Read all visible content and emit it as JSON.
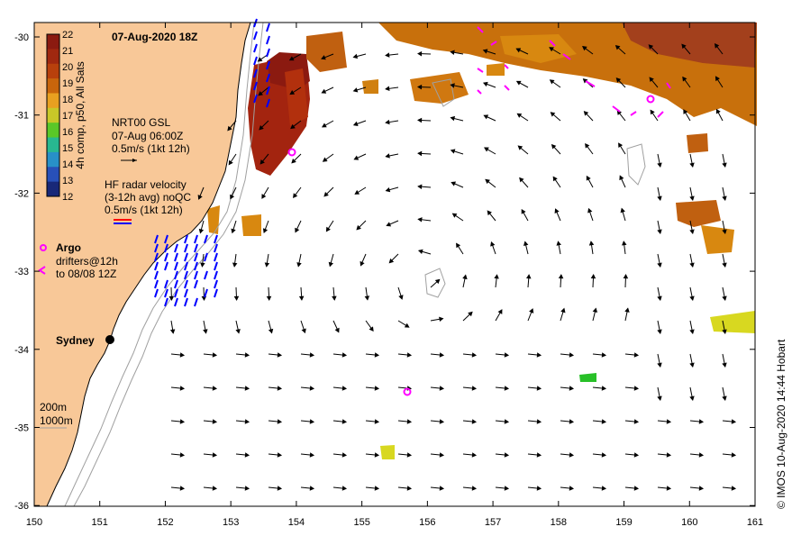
{
  "map": {
    "title": "07-Aug-2020 18Z",
    "credit": "© IMOS 10-Aug-2020 14:44 Hobart",
    "x_ticks": [
      "150",
      "151",
      "152",
      "153",
      "154",
      "155",
      "156",
      "157",
      "158",
      "159",
      "160",
      "161"
    ],
    "y_ticks": [
      "-30",
      "-31",
      "-32",
      "-33",
      "-34",
      "-35",
      "-36"
    ],
    "lon_range": [
      150,
      161
    ],
    "lat_range": [
      -36,
      -29.8
    ]
  },
  "colorbar": {
    "label": "4h comp, p50, All Sats",
    "ticks": [
      "22",
      "21",
      "20",
      "19",
      "18",
      "17",
      "16",
      "15",
      "14",
      "13",
      "12"
    ],
    "colors": [
      "#8b1a10",
      "#a0280f",
      "#b8400c",
      "#c8650c",
      "#e8a020",
      "#c8c828",
      "#5ac828",
      "#28b890",
      "#2890c8",
      "#2850b8",
      "#182878"
    ]
  },
  "legend": {
    "gsl_title": "NRT00 GSL",
    "gsl_time": "07-Aug 06:00Z",
    "gsl_scale": "0.5m/s (1kt 12h)",
    "radar_title": "HF radar velocity",
    "radar_avg": "(3-12h avg) noQC",
    "radar_scale": "0.5m/s (1kt 12h)",
    "argo_label": "Argo",
    "drifters_label": "drifters@12h",
    "drifters_to": "to 08/08 12Z",
    "depth_200": "200m",
    "depth_1000": "1000m"
  },
  "places": {
    "sydney": "Sydney"
  },
  "colors": {
    "land": "#f8c898",
    "ocean": "#ffffff",
    "gsl_arrow": "#000000",
    "radar_arrow": "#0000ff",
    "argo": "#ff00ff",
    "contour": "#a0a0a0"
  }
}
